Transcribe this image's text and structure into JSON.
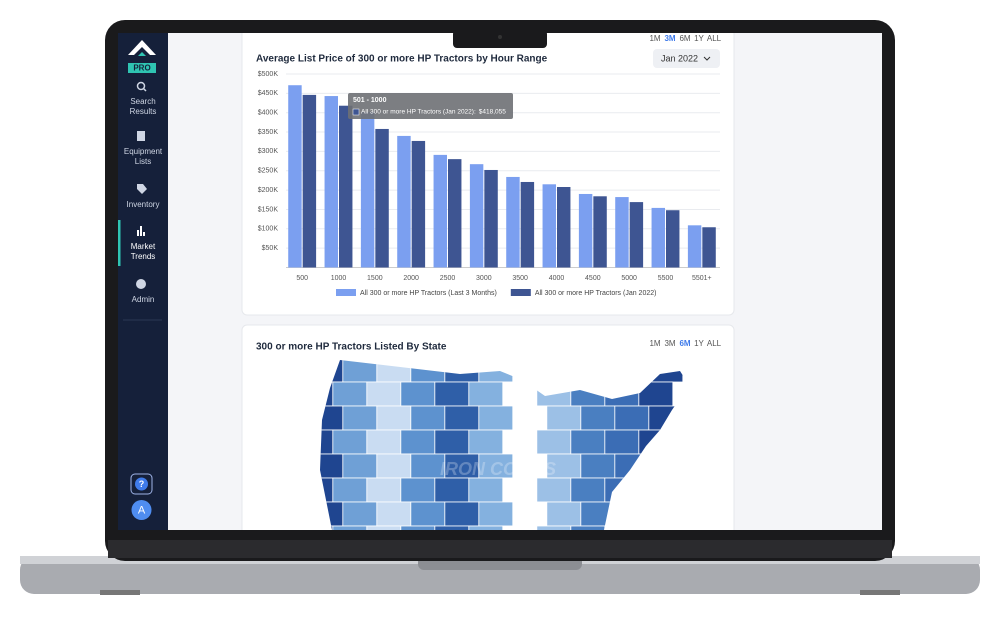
{
  "sidebar": {
    "logo_badge": "PRO",
    "items": [
      {
        "label": "Search Results"
      },
      {
        "label": "Equipment Lists"
      },
      {
        "label": "Inventory"
      },
      {
        "label": "Market Trends"
      },
      {
        "label": "Admin"
      }
    ],
    "active_item": 3,
    "help": "?",
    "avatar": "A"
  },
  "chart_card": {
    "range_options": [
      "1M",
      "3M",
      "6M",
      "1Y",
      "ALL"
    ],
    "active_range": 1,
    "dropdown": "Jan 2022",
    "chart_data": {
      "type": "bar",
      "title": "Average List Price of 300 or more HP Tractors by Hour Range",
      "categories": [
        "500",
        "1000",
        "1500",
        "2000",
        "2500",
        "3000",
        "3500",
        "4000",
        "4500",
        "5000",
        "5500",
        "5501+"
      ],
      "series": [
        {
          "name": "All 300 or more HP Tractors (Last 3 Months)",
          "color": "#7b9ff0",
          "values": [
            471000,
            443000,
            402000,
            340000,
            291000,
            267000,
            234000,
            215000,
            190000,
            182000,
            154000,
            109000
          ]
        },
        {
          "name": "All 300 or more HP Tractors (Jan 2022)",
          "color": "#3e5592",
          "values": [
            446000,
            418055,
            358000,
            327000,
            280000,
            252000,
            221000,
            208000,
            184000,
            169000,
            148000,
            104000
          ]
        }
      ],
      "ylim": [
        0,
        500000
      ],
      "yticks": [
        {
          "value": 50000,
          "label": "$50K"
        },
        {
          "value": 100000,
          "label": "$100K"
        },
        {
          "value": 150000,
          "label": "$150K"
        },
        {
          "value": 200000,
          "label": "$200K"
        },
        {
          "value": 250000,
          "label": "$250K"
        },
        {
          "value": 300000,
          "label": "$300K"
        },
        {
          "value": 350000,
          "label": "$350K"
        },
        {
          "value": 400000,
          "label": "$400K"
        },
        {
          "value": 450000,
          "label": "$450K"
        },
        {
          "value": 500000,
          "label": "$500K"
        }
      ],
      "grid": true,
      "legend": "bottom"
    },
    "tooltip": {
      "title": "501 - 1000",
      "label": "All 300 or more HP Tractors (Jan 2022):",
      "value_label": "$418,055"
    }
  },
  "map_card": {
    "title": "300 or more HP Tractors Listed By State",
    "range_options": [
      "1M",
      "3M",
      "6M",
      "1Y",
      "ALL"
    ],
    "active_range": 2
  }
}
